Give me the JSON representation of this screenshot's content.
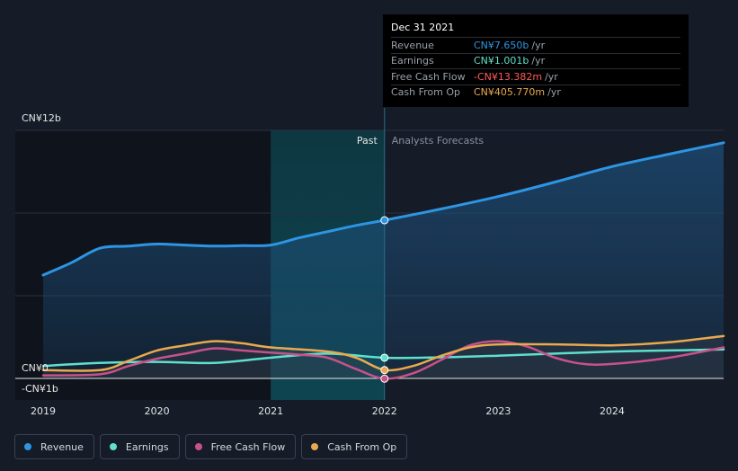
{
  "colors": {
    "revenue": "#2d95e3",
    "earnings": "#5fe0cc",
    "free_cash_flow": "#c8518a",
    "cash_from_op": "#e9a94f",
    "background": "#151b27"
  },
  "tooltip": {
    "date": "Dec 31 2021",
    "rows": [
      {
        "label": "Revenue",
        "value": "CN¥7.650b",
        "unit": "/yr"
      },
      {
        "label": "Earnings",
        "value": "CN¥1.001b",
        "unit": "/yr"
      },
      {
        "label": "Free Cash Flow",
        "value": "-CN¥13.382m",
        "unit": "/yr"
      },
      {
        "label": "Cash From Op",
        "value": "CN¥405.770m",
        "unit": "/yr"
      }
    ]
  },
  "legend": [
    {
      "label": "Revenue",
      "color": "#2d95e3"
    },
    {
      "label": "Earnings",
      "color": "#5fe0cc"
    },
    {
      "label": "Free Cash Flow",
      "color": "#c8518a"
    },
    {
      "label": "Cash From Op",
      "color": "#e9a94f"
    }
  ],
  "chart_data": {
    "type": "line",
    "title": "",
    "xlabel": "",
    "ylabel": "",
    "unit": "CN¥ billions",
    "y_tick_labels": [
      {
        "value": 12,
        "label": "CN¥12b"
      },
      {
        "value": 0,
        "label": "CN¥0"
      },
      {
        "value": -1,
        "label": "-CN¥1b"
      }
    ],
    "ylim": [
      -1,
      12
    ],
    "xlim": [
      2019.0,
      2024.98
    ],
    "x_ticks": [
      2019,
      2020,
      2021,
      2022,
      2023,
      2024
    ],
    "x_tick_labels": [
      "2019",
      "2020",
      "2021",
      "2022",
      "2023",
      "2024"
    ],
    "past_label": "Past",
    "forecast_label": "Analysts Forecasts",
    "divider_x": 2022.0,
    "highlight_band": [
      2021.0,
      2022.0
    ],
    "series": [
      {
        "name": "Revenue",
        "key": "revenue",
        "x": [
          2019.0,
          2019.25,
          2019.5,
          2019.75,
          2020.0,
          2020.25,
          2020.5,
          2020.75,
          2021.0,
          2021.25,
          2021.5,
          2021.75,
          2022.0,
          2022.5,
          2023.0,
          2023.5,
          2024.0,
          2024.5,
          2024.98
        ],
        "values": [
          5.0,
          5.6,
          6.3,
          6.4,
          6.5,
          6.45,
          6.4,
          6.42,
          6.45,
          6.8,
          7.1,
          7.4,
          7.65,
          8.2,
          8.8,
          9.5,
          10.25,
          10.85,
          11.4
        ]
      },
      {
        "name": "Earnings",
        "key": "earnings",
        "x": [
          2019.0,
          2019.5,
          2020.0,
          2020.5,
          2021.0,
          2021.5,
          2022.0,
          2022.5,
          2023.0,
          2023.5,
          2024.0,
          2024.5,
          2024.98
        ],
        "values": [
          0.6,
          0.75,
          0.8,
          0.75,
          1.0,
          1.2,
          1.0,
          1.02,
          1.1,
          1.2,
          1.3,
          1.35,
          1.4
        ]
      },
      {
        "name": "Free Cash Flow",
        "key": "free_cash_flow",
        "x": [
          2019.0,
          2019.5,
          2019.75,
          2020.0,
          2020.25,
          2020.5,
          2020.75,
          2021.0,
          2021.25,
          2021.5,
          2021.75,
          2022.0,
          2022.25,
          2022.5,
          2022.75,
          2023.0,
          2023.25,
          2023.5,
          2023.75,
          2024.0,
          2024.5,
          2024.98
        ],
        "values": [
          0.15,
          0.2,
          0.6,
          0.95,
          1.2,
          1.45,
          1.35,
          1.25,
          1.15,
          1.0,
          0.45,
          -0.01,
          0.25,
          0.9,
          1.6,
          1.8,
          1.55,
          1.0,
          0.7,
          0.7,
          1.0,
          1.5
        ]
      },
      {
        "name": "Cash From Op",
        "key": "cash_from_op",
        "x": [
          2019.0,
          2019.5,
          2019.75,
          2020.0,
          2020.25,
          2020.5,
          2020.75,
          2021.0,
          2021.5,
          2021.75,
          2022.0,
          2022.25,
          2022.5,
          2022.75,
          2023.0,
          2023.5,
          2024.0,
          2024.5,
          2024.98
        ],
        "values": [
          0.4,
          0.4,
          0.85,
          1.35,
          1.6,
          1.8,
          1.7,
          1.5,
          1.3,
          1.0,
          0.41,
          0.6,
          1.1,
          1.5,
          1.65,
          1.65,
          1.6,
          1.75,
          2.05
        ]
      }
    ],
    "tooltip_markers": {
      "x": 2022.0,
      "revenue": 7.65,
      "earnings": 1.001,
      "free_cash_flow": -0.013382,
      "cash_from_op": 0.40577
    }
  }
}
